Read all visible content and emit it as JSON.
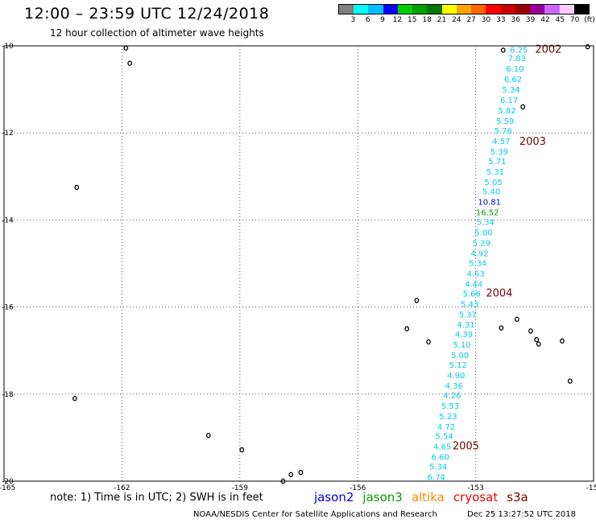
{
  "title": "12:00 – 23:59 UTC 12/24/2018",
  "subtitle": "12 hour collection of altimeter wave heights",
  "color_scale": {
    "colors": [
      "#808080",
      "#00ffff",
      "#00bfff",
      "#0000ff",
      "#00cc00",
      "#00a000",
      "#007700",
      "#ffff00",
      "#ffa500",
      "#ff6600",
      "#ff0000",
      "#cc0000",
      "#990000",
      "#990099",
      "#cc66ff",
      "#ffccff",
      "#000000"
    ],
    "labels": [
      "3",
      "6",
      "9",
      "12",
      "15",
      "18",
      "21",
      "24",
      "27",
      "30",
      "33",
      "36",
      "39",
      "42",
      "45",
      "70",
      "(ft)"
    ]
  },
  "map": {
    "lat_range": [
      -20,
      -10
    ],
    "lon_range": [
      -165,
      -150
    ],
    "lat_ticks": [
      "-10",
      "-12",
      "-14",
      "-16",
      "-18",
      "-20"
    ],
    "lon_ticks": [
      "-165",
      "-162",
      "-159",
      "-156",
      "-153",
      "-15"
    ],
    "grid": "dotted"
  },
  "track_readings": [
    {
      "lat": -10.08,
      "lon": -151.9,
      "value": "6.25",
      "color": "#00ccee"
    },
    {
      "lat": -10.28,
      "lon": -151.95,
      "value": "7.83",
      "color": "#00ccee"
    },
    {
      "lat": -10.52,
      "lon": -152.0,
      "value": "6.10",
      "color": "#00ccee"
    },
    {
      "lat": -10.76,
      "lon": -152.05,
      "value": "6.62",
      "color": "#00ccee"
    },
    {
      "lat": -11.0,
      "lon": -152.1,
      "value": "5.34",
      "color": "#00ccee"
    },
    {
      "lat": -11.24,
      "lon": -152.15,
      "value": "6.17",
      "color": "#00ccee"
    },
    {
      "lat": -11.48,
      "lon": -152.2,
      "value": "5.82",
      "color": "#00ccee"
    },
    {
      "lat": -11.72,
      "lon": -152.25,
      "value": "5.59",
      "color": "#00ccee"
    },
    {
      "lat": -11.94,
      "lon": -152.3,
      "value": "5.76",
      "color": "#00ccee"
    },
    {
      "lat": -12.18,
      "lon": -152.35,
      "value": "4.57",
      "color": "#00ccee"
    },
    {
      "lat": -12.42,
      "lon": -152.4,
      "value": "5.39",
      "color": "#00ccee"
    },
    {
      "lat": -12.64,
      "lon": -152.45,
      "value": "5.71",
      "color": "#00ccee"
    },
    {
      "lat": -12.88,
      "lon": -152.5,
      "value": "5.31",
      "color": "#00ccee"
    },
    {
      "lat": -13.12,
      "lon": -152.55,
      "value": "5.05",
      "color": "#00ccee"
    },
    {
      "lat": -13.34,
      "lon": -152.6,
      "value": "5.40",
      "color": "#00ccee"
    },
    {
      "lat": -13.58,
      "lon": -152.65,
      "value": "10.81",
      "color": "#0000dd"
    },
    {
      "lat": -13.82,
      "lon": -152.7,
      "value": "16.52",
      "color": "#00a000"
    },
    {
      "lat": -14.04,
      "lon": -152.75,
      "value": "5.34",
      "color": "#00ccee"
    },
    {
      "lat": -14.28,
      "lon": -152.8,
      "value": "5.00",
      "color": "#00ccee"
    },
    {
      "lat": -14.52,
      "lon": -152.85,
      "value": "5.29",
      "color": "#00ccee"
    },
    {
      "lat": -14.76,
      "lon": -152.9,
      "value": "4.92",
      "color": "#00ccee"
    },
    {
      "lat": -14.98,
      "lon": -152.95,
      "value": "5.34",
      "color": "#00ccee"
    },
    {
      "lat": -15.22,
      "lon": -153.0,
      "value": "4.63",
      "color": "#00ccee"
    },
    {
      "lat": -15.46,
      "lon": -153.05,
      "value": "4.44",
      "color": "#00ccee"
    },
    {
      "lat": -15.68,
      "lon": -153.1,
      "value": "5.66",
      "color": "#00ccee"
    },
    {
      "lat": -15.92,
      "lon": -153.15,
      "value": "5.43",
      "color": "#00ccee"
    },
    {
      "lat": -16.16,
      "lon": -153.2,
      "value": "5.37",
      "color": "#00ccee"
    },
    {
      "lat": -16.4,
      "lon": -153.25,
      "value": "4.31",
      "color": "#00ccee"
    },
    {
      "lat": -16.62,
      "lon": -153.3,
      "value": "4.39",
      "color": "#00ccee"
    },
    {
      "lat": -16.86,
      "lon": -153.35,
      "value": "5.10",
      "color": "#00ccee"
    },
    {
      "lat": -17.1,
      "lon": -153.4,
      "value": "5.00",
      "color": "#00ccee"
    },
    {
      "lat": -17.32,
      "lon": -153.45,
      "value": "5.12",
      "color": "#00ccee"
    },
    {
      "lat": -17.56,
      "lon": -153.5,
      "value": "4.90",
      "color": "#00ccee"
    },
    {
      "lat": -17.8,
      "lon": -153.55,
      "value": "4.36",
      "color": "#00ccee"
    },
    {
      "lat": -18.02,
      "lon": -153.6,
      "value": "4.26",
      "color": "#00ccee"
    },
    {
      "lat": -18.26,
      "lon": -153.65,
      "value": "5.53",
      "color": "#00ccee"
    },
    {
      "lat": -18.5,
      "lon": -153.7,
      "value": "5.23",
      "color": "#00ccee"
    },
    {
      "lat": -18.74,
      "lon": -153.75,
      "value": "4.72",
      "color": "#00ccee"
    },
    {
      "lat": -18.96,
      "lon": -153.8,
      "value": "5.54",
      "color": "#00ccee"
    },
    {
      "lat": -19.2,
      "lon": -153.85,
      "value": "4.65",
      "color": "#00ccee"
    },
    {
      "lat": -19.44,
      "lon": -153.9,
      "value": "6.60",
      "color": "#00ccee"
    },
    {
      "lat": -19.66,
      "lon": -153.95,
      "value": "5.34",
      "color": "#00ccee"
    },
    {
      "lat": -19.9,
      "lon": -154.0,
      "value": "6.74",
      "color": "#00ccee"
    }
  ],
  "hour_markers": [
    {
      "lat": -10.08,
      "lon": -151.15,
      "text": "2002"
    },
    {
      "lat": -12.2,
      "lon": -151.55,
      "text": "2003"
    },
    {
      "lat": -15.68,
      "lon": -152.4,
      "text": "2004"
    },
    {
      "lat": -19.2,
      "lon": -153.25,
      "text": "2005"
    }
  ],
  "islands": [
    {
      "lat": -10.05,
      "lon": -161.9
    },
    {
      "lat": -10.4,
      "lon": -161.8
    },
    {
      "lat": -13.25,
      "lon": -163.15
    },
    {
      "lat": -18.1,
      "lon": -163.2
    },
    {
      "lat": -18.95,
      "lon": -159.8
    },
    {
      "lat": -19.28,
      "lon": -158.95
    },
    {
      "lat": -19.85,
      "lon": -157.7
    },
    {
      "lat": -19.8,
      "lon": -157.45
    },
    {
      "lat": -20.0,
      "lon": -157.9
    },
    {
      "lat": -15.85,
      "lon": -154.5
    },
    {
      "lat": -16.5,
      "lon": -154.75
    },
    {
      "lat": -16.8,
      "lon": -154.2
    },
    {
      "lat": -16.48,
      "lon": -152.35
    },
    {
      "lat": -16.28,
      "lon": -151.95
    },
    {
      "lat": -16.55,
      "lon": -151.6
    },
    {
      "lat": -16.75,
      "lon": -151.45
    },
    {
      "lat": -16.85,
      "lon": -151.4
    },
    {
      "lat": -16.78,
      "lon": -150.8
    },
    {
      "lat": -17.7,
      "lon": -150.6
    },
    {
      "lat": -10.1,
      "lon": -152.3
    },
    {
      "lat": -11.4,
      "lon": -151.8
    },
    {
      "lat": -10.02,
      "lon": -150.15
    }
  ],
  "note": "note:  1) Time is in UTC;  2) SWH is in feet",
  "satellites": [
    {
      "name": "jason2",
      "color": "#0000dd"
    },
    {
      "name": "jason3",
      "color": "#00a000"
    },
    {
      "name": "altika",
      "color": "#ff8800"
    },
    {
      "name": "cryosat",
      "color": "#ee0000"
    },
    {
      "name": "s3a",
      "color": "#7a0000"
    }
  ],
  "credit": "NOAA/NESDIS Center for Satellite Applications and Research",
  "timestamp": "Dec 25 13:27:52 UTC 2018"
}
